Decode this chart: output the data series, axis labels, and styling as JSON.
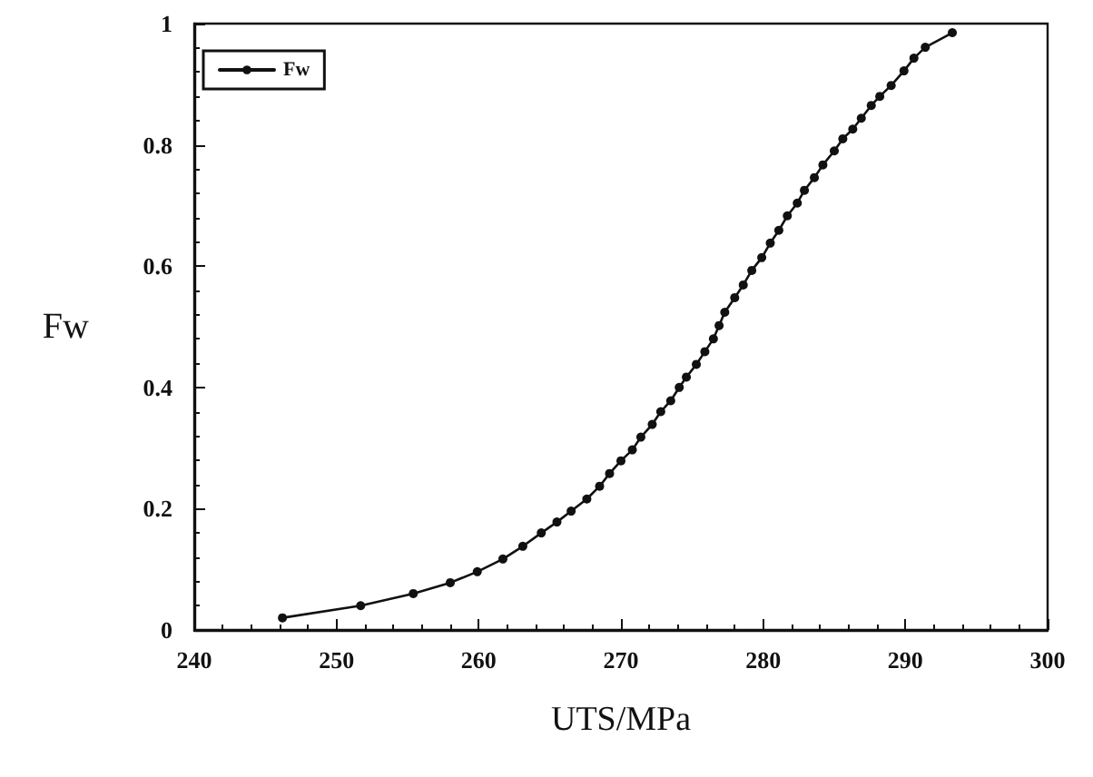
{
  "chart_data": {
    "type": "line",
    "xlabel": "UTS/MPa",
    "ylabel": "Fw",
    "xlim": [
      240,
      300
    ],
    "xticks": [
      240,
      250,
      260,
      270,
      280,
      290,
      300
    ],
    "ylim": [
      0,
      1
    ],
    "yticks": [
      0,
      0.2,
      0.4,
      0.6,
      0.8,
      1
    ],
    "grid": false,
    "legend": "top left",
    "marker": "circle",
    "line_style": "solid",
    "series": [
      {
        "name": "Fw",
        "color": "#111111",
        "x": [
          246.2,
          251.7,
          255.4,
          258,
          259.9,
          261.7,
          263.1,
          264.4,
          265.5,
          266.5,
          267.6,
          268.5,
          269.2,
          270,
          270.8,
          271.4,
          272.2,
          272.8,
          273.5,
          274.1,
          274.6,
          275.3,
          275.9,
          276.5,
          276.9,
          277.3,
          278,
          278.6,
          279.2,
          279.9,
          280.5,
          281.1,
          281.7,
          282.4,
          282.9,
          283.6,
          284.2,
          285,
          285.6,
          286.3,
          286.9,
          287.6,
          288.2,
          289,
          289.9,
          290.6,
          291.4,
          293.3
        ],
        "values": [
          0.02,
          0.04,
          0.06,
          0.078,
          0.096,
          0.117,
          0.138,
          0.16,
          0.178,
          0.196,
          0.216,
          0.237,
          0.258,
          0.279,
          0.297,
          0.318,
          0.339,
          0.36,
          0.378,
          0.4,
          0.417,
          0.438,
          0.459,
          0.48,
          0.502,
          0.524,
          0.548,
          0.569,
          0.593,
          0.614,
          0.638,
          0.659,
          0.683,
          0.704,
          0.725,
          0.746,
          0.767,
          0.79,
          0.81,
          0.826,
          0.844,
          0.865,
          0.88,
          0.898,
          0.922,
          0.943,
          0.961,
          0.985
        ]
      }
    ]
  }
}
